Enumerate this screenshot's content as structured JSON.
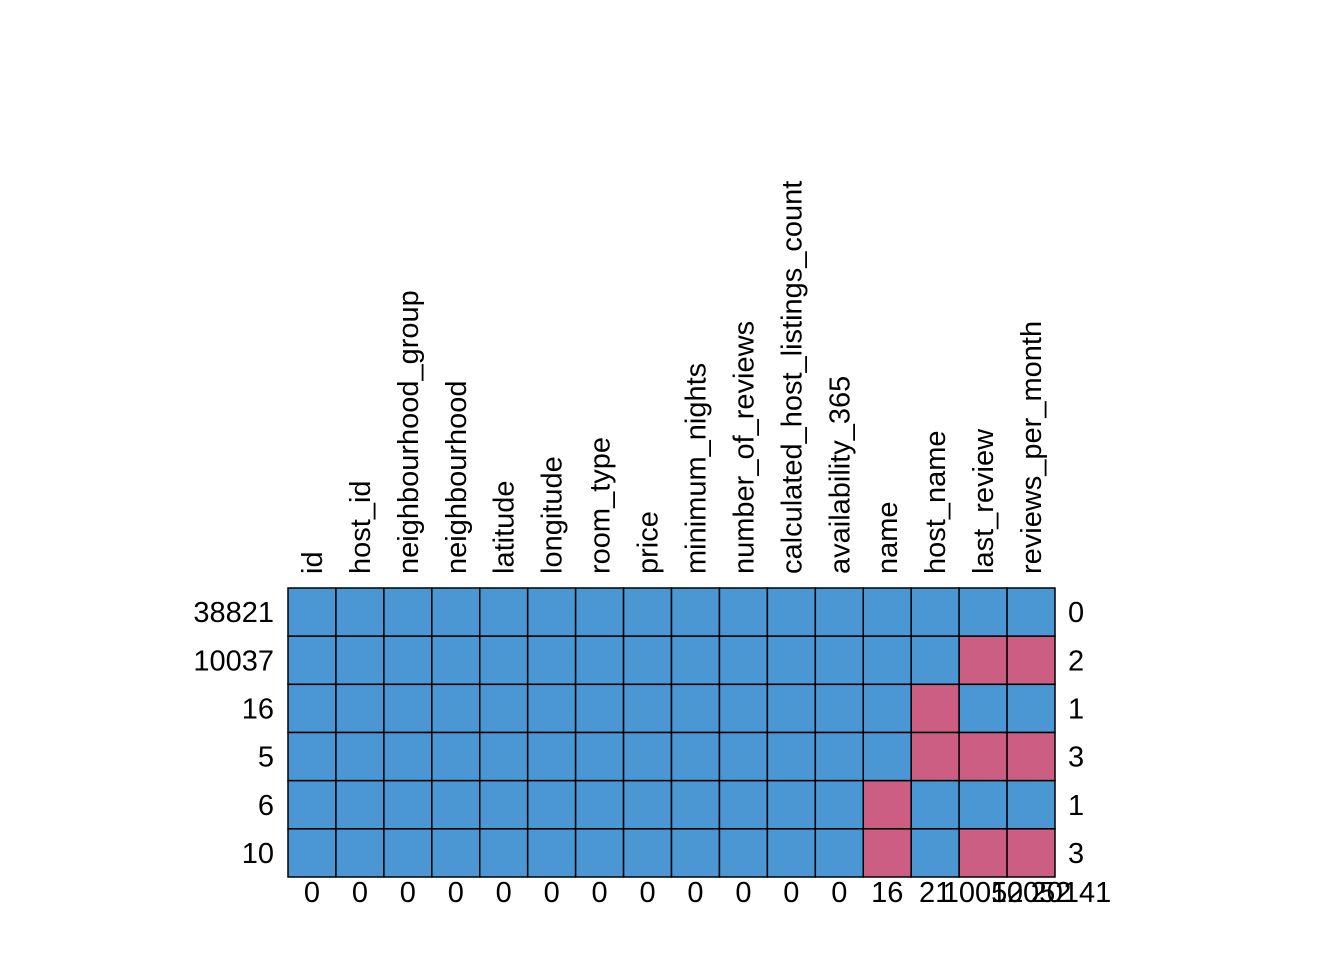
{
  "chart_data": {
    "type": "heatmap",
    "title": "",
    "xlabel": "",
    "ylabel": "",
    "columns": [
      "id",
      "host_id",
      "neighbourhood_group",
      "neighbourhood",
      "latitude",
      "longitude",
      "room_type",
      "price",
      "minimum_nights",
      "number_of_reviews",
      "calculated_host_listings_count",
      "availability_365",
      "name",
      "host_name",
      "last_review",
      "reviews_per_month"
    ],
    "row_counts": [
      "38821",
      "10037",
      "16",
      "5",
      "6",
      "10"
    ],
    "row_missing_totals": [
      "0",
      "2",
      "1",
      "3",
      "1",
      "3"
    ],
    "column_missing_totals": [
      "0",
      "0",
      "0",
      "0",
      "0",
      "0",
      "0",
      "0",
      "0",
      "0",
      "0",
      "0",
      "16",
      "21",
      "10052",
      "10052"
    ],
    "pattern": [
      [
        1,
        1,
        1,
        1,
        1,
        1,
        1,
        1,
        1,
        1,
        1,
        1,
        1,
        1,
        1,
        1
      ],
      [
        1,
        1,
        1,
        1,
        1,
        1,
        1,
        1,
        1,
        1,
        1,
        1,
        1,
        1,
        0,
        0
      ],
      [
        1,
        1,
        1,
        1,
        1,
        1,
        1,
        1,
        1,
        1,
        1,
        1,
        1,
        0,
        1,
        1
      ],
      [
        1,
        1,
        1,
        1,
        1,
        1,
        1,
        1,
        1,
        1,
        1,
        1,
        1,
        0,
        0,
        0
      ],
      [
        1,
        1,
        1,
        1,
        1,
        1,
        1,
        1,
        1,
        1,
        1,
        1,
        0,
        1,
        1,
        1
      ],
      [
        1,
        1,
        1,
        1,
        1,
        1,
        1,
        1,
        1,
        1,
        1,
        1,
        0,
        1,
        0,
        0
      ]
    ],
    "bottom_total": "20141",
    "colors": {
      "observed": "#4A97D3",
      "missing": "#CC5D83",
      "border": "#000000"
    },
    "legend": "none",
    "grid": false
  }
}
